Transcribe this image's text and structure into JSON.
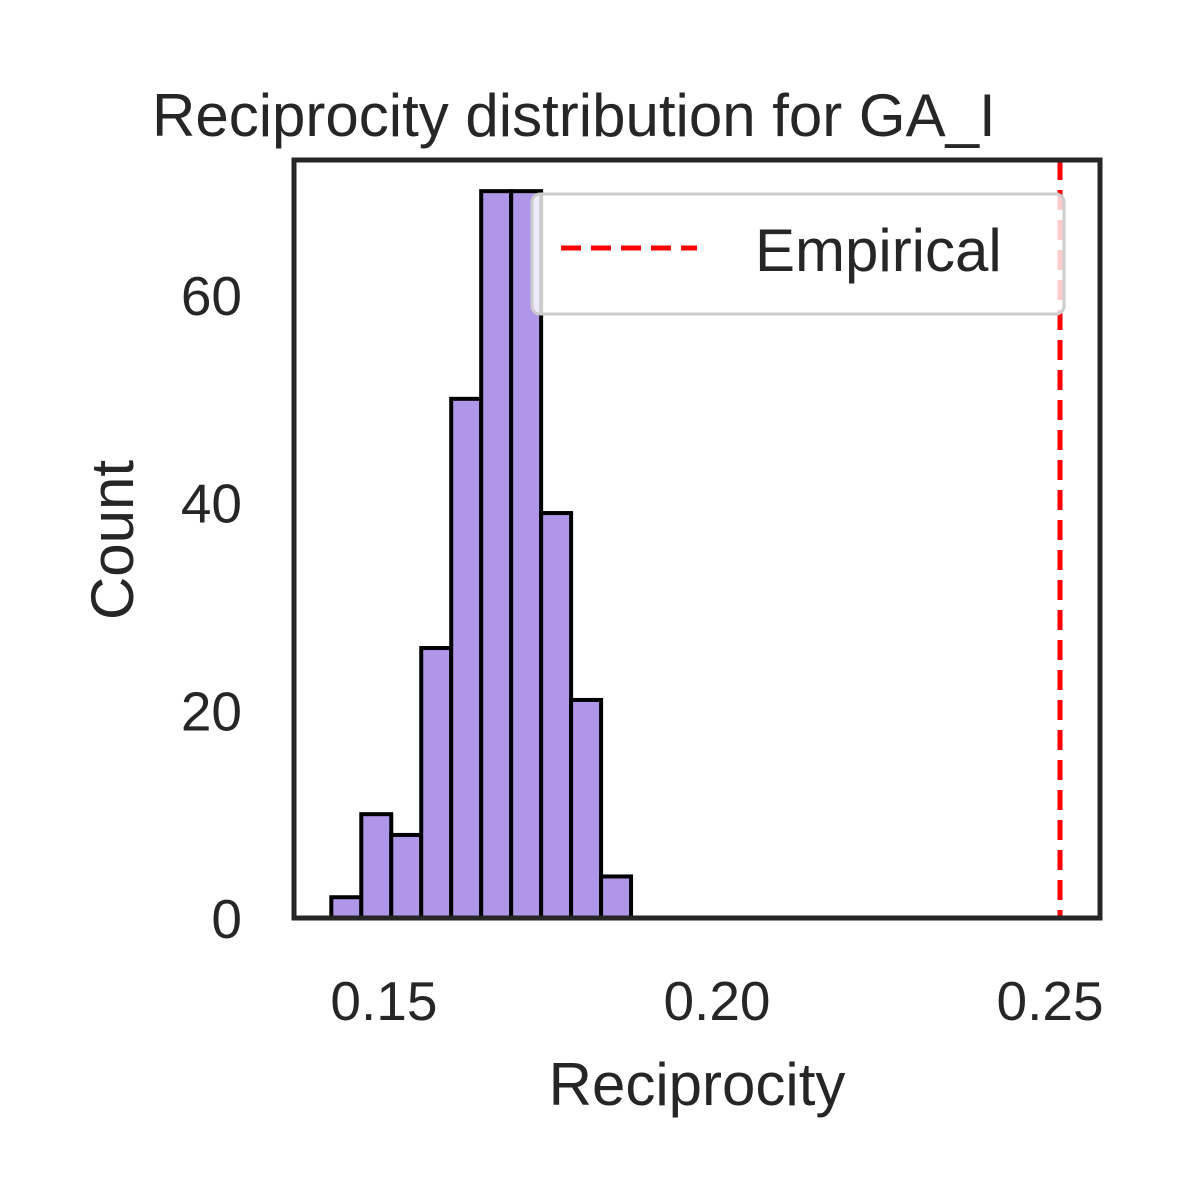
{
  "chart_data": {
    "type": "histogram",
    "title": "Reciprocity distribution for GA_I",
    "xlabel": "Reciprocity",
    "ylabel": "Count",
    "xlim": [
      0.1365,
      0.2575
    ],
    "ylim": [
      0,
      73
    ],
    "xticks": [
      0.15,
      0.2,
      0.25
    ],
    "xtick_labels": [
      "0.15",
      "0.20",
      "0.25"
    ],
    "yticks": [
      0,
      20,
      40,
      60
    ],
    "ytick_labels": [
      "0",
      "20",
      "40",
      "60"
    ],
    "bins": [
      {
        "x0": 0.1421,
        "x1": 0.1466,
        "count": 2
      },
      {
        "x0": 0.1466,
        "x1": 0.1511,
        "count": 10
      },
      {
        "x0": 0.1511,
        "x1": 0.1556,
        "count": 8
      },
      {
        "x0": 0.1556,
        "x1": 0.1601,
        "count": 26
      },
      {
        "x0": 0.1601,
        "x1": 0.1646,
        "count": 50
      },
      {
        "x0": 0.1646,
        "x1": 0.1691,
        "count": 70
      },
      {
        "x0": 0.1691,
        "x1": 0.1736,
        "count": 70
      },
      {
        "x0": 0.1736,
        "x1": 0.1781,
        "count": 39
      },
      {
        "x0": 0.1781,
        "x1": 0.1826,
        "count": 21
      },
      {
        "x0": 0.1826,
        "x1": 0.1871,
        "count": 4
      }
    ],
    "bar_color": "#b096e8",
    "bar_edge_color": "#000000",
    "reference_line": {
      "name": "Empirical",
      "x": 0.2515,
      "color": "#ff0000",
      "style": "dashed"
    },
    "legend": {
      "position": "top-right",
      "entries": [
        "Empirical"
      ]
    },
    "grid": false
  }
}
